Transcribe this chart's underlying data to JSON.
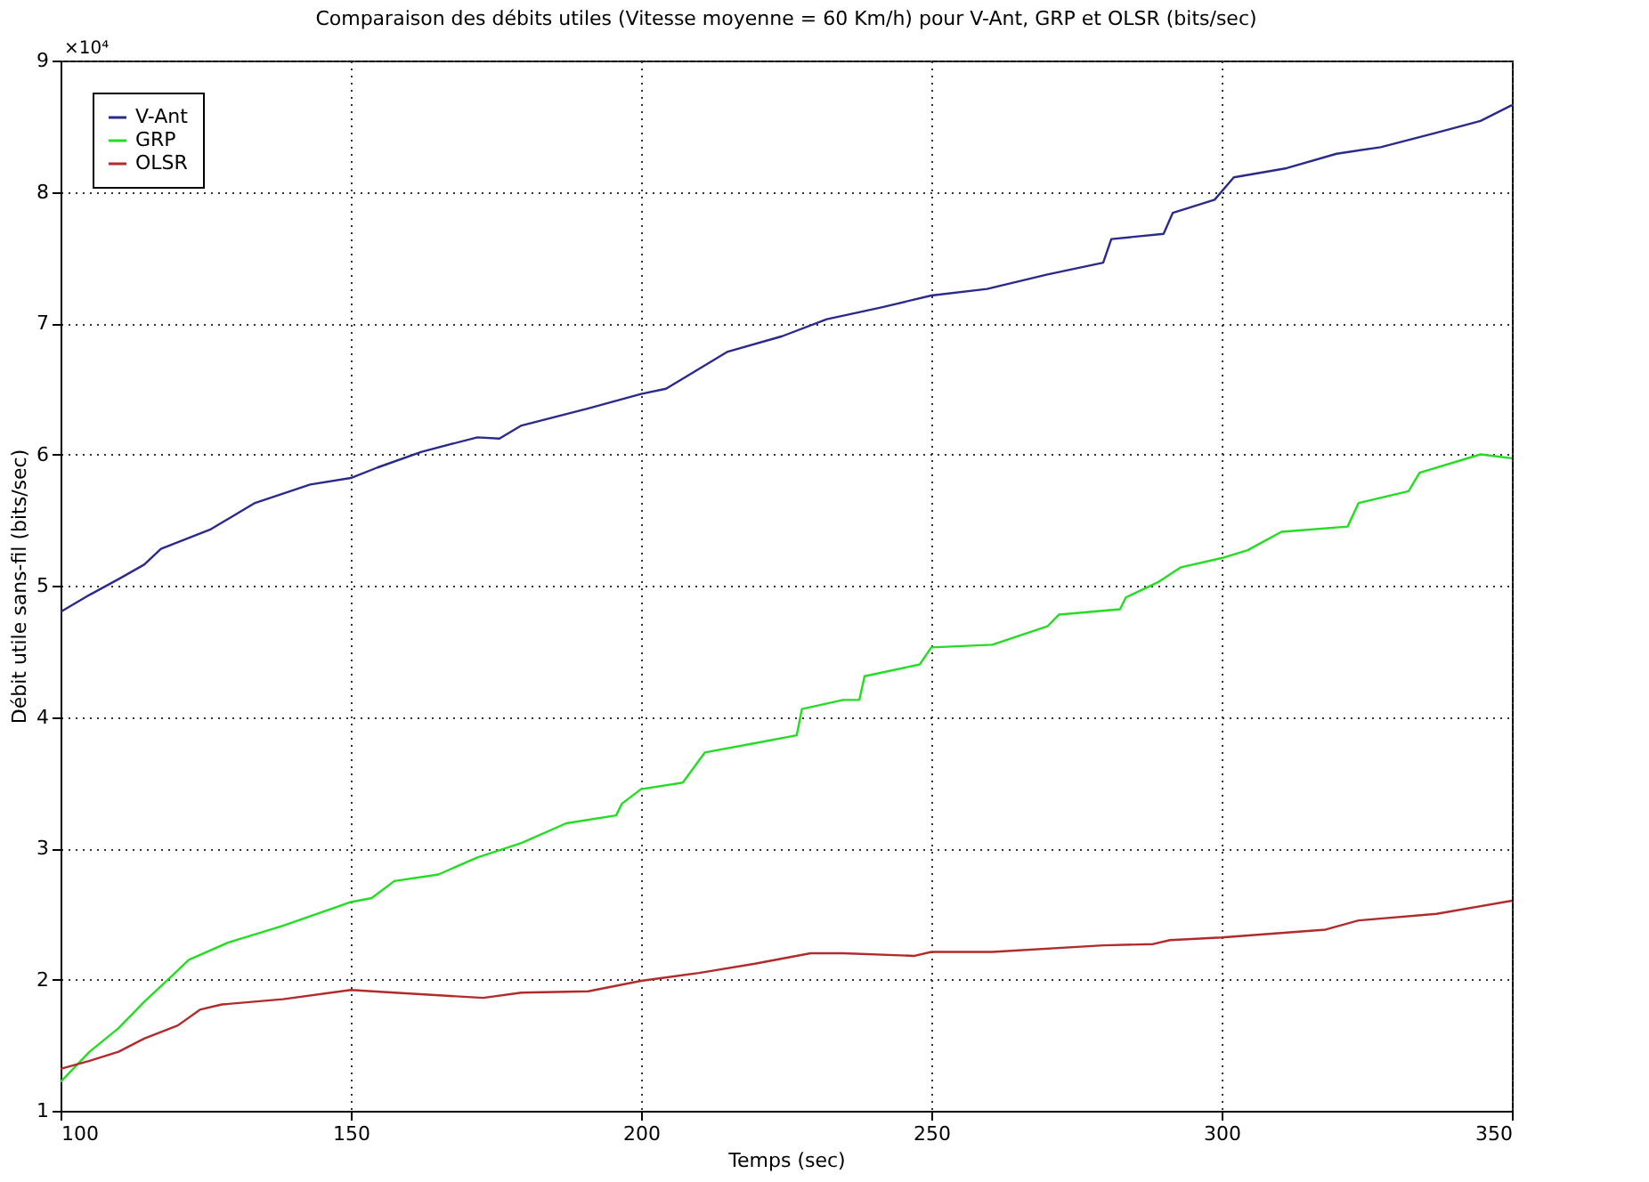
{
  "chart_data": {
    "type": "line",
    "title": "Comparaison des débits utiles (Vitesse moyenne = 60 Km/h) pour V-Ant, GRP et OLSR (bits/sec)",
    "xlabel": "Temps (sec)",
    "ylabel": "Débit utile sans-fil (bits/sec)",
    "annotations": [
      "×10⁴"
    ],
    "xlim": [
      100,
      350
    ],
    "xticks": [
      100,
      150,
      200,
      250,
      300,
      350
    ],
    "ylim": [
      1,
      9
    ],
    "yticks": [
      1,
      2,
      3,
      4,
      5,
      6,
      7,
      8,
      9
    ],
    "grid": true,
    "legend": "top left",
    "line_style": "solid",
    "marker": "none",
    "series": [
      {
        "name": "V-Ant",
        "color": "#2a2a8c",
        "x": [
          100,
          105,
          110,
          114.4,
          117.3,
          125.9,
          133.5,
          143,
          150,
          154.6,
          162.2,
          171.8,
          175.6,
          179.4,
          190.9,
          200,
          204.3,
          214.8,
          224.3,
          232,
          241.4,
          250,
          259.6,
          270,
          279.6,
          281,
          290,
          291.6,
          298.8,
          302.1,
          311.2,
          319.8,
          327.4,
          337,
          344.6,
          350
        ],
        "values": [
          4.8,
          4.93,
          5.05,
          5.16,
          5.28,
          5.43,
          5.63,
          5.77,
          5.82,
          5.9,
          6.02,
          6.13,
          6.12,
          6.22,
          6.35,
          6.46,
          6.5,
          6.78,
          6.9,
          7.03,
          7.12,
          7.21,
          7.26,
          7.37,
          7.46,
          7.64,
          7.68,
          7.84,
          7.94,
          8.11,
          8.18,
          8.29,
          8.34,
          8.45,
          8.54,
          8.66
        ]
      },
      {
        "name": "GRP",
        "color": "#22dd22",
        "x": [
          100,
          105,
          110,
          114.4,
          118.3,
          122.1,
          128.8,
          138.3,
          150,
          153.6,
          157.5,
          165.1,
          171.8,
          179.4,
          187.1,
          195.7,
          196.7,
          200,
          207.2,
          211,
          219.6,
          226.8,
          227.7,
          234.8,
          237.6,
          238.5,
          248,
          250,
          260.5,
          270,
          272,
          282.5,
          283.5,
          289.2,
          293,
          300,
          304.5,
          310.3,
          321.7,
          323.6,
          332.2,
          334.1,
          344.6,
          350
        ],
        "values": [
          1.22,
          1.45,
          1.63,
          1.83,
          1.99,
          2.15,
          2.28,
          2.41,
          2.59,
          2.62,
          2.75,
          2.8,
          2.93,
          3.04,
          3.19,
          3.25,
          3.34,
          3.45,
          3.5,
          3.73,
          3.8,
          3.86,
          4.06,
          4.13,
          4.13,
          4.31,
          4.4,
          4.53,
          4.55,
          4.69,
          4.78,
          4.82,
          4.91,
          5.03,
          5.14,
          5.21,
          5.27,
          5.41,
          5.45,
          5.63,
          5.72,
          5.86,
          6.0,
          5.97
        ]
      },
      {
        "name": "OLSR",
        "color": "#b22a2a",
        "x": [
          100,
          105,
          110,
          114.4,
          120.2,
          124,
          127.8,
          138.3,
          150,
          157.5,
          172.8,
          179.4,
          190.9,
          200,
          210,
          219.6,
          229.2,
          234.8,
          247.1,
          250,
          260.5,
          279.6,
          288.2,
          291.1,
          300,
          317.9,
          323.6,
          337,
          350
        ],
        "values": [
          1.32,
          1.38,
          1.45,
          1.55,
          1.65,
          1.77,
          1.81,
          1.85,
          1.92,
          1.9,
          1.86,
          1.9,
          1.91,
          1.99,
          2.05,
          2.12,
          2.2,
          2.2,
          2.18,
          2.21,
          2.21,
          2.26,
          2.27,
          2.3,
          2.32,
          2.38,
          2.45,
          2.5,
          2.6
        ]
      }
    ]
  }
}
